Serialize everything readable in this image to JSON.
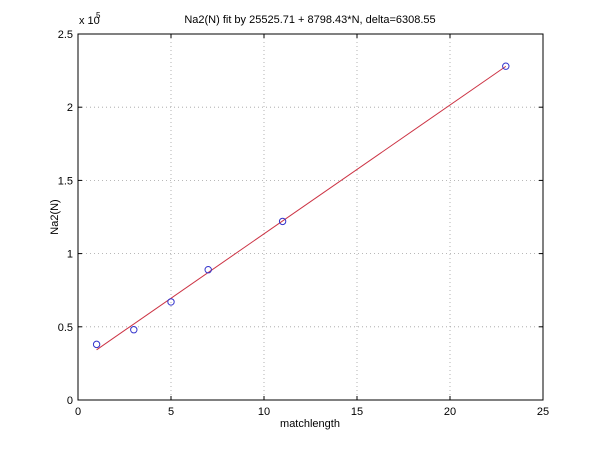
{
  "chart_data": {
    "type": "scatter",
    "title": "Na2(N) fit by 25525.71 + 8798.43*N, delta=6308.55",
    "xlabel": "matchlength",
    "ylabel": "Na2(N)",
    "xlim": [
      0,
      25
    ],
    "ylim": [
      0,
      2.5
    ],
    "y_multiplier_base": "x 10",
    "y_multiplier_exponent": "5",
    "xticks": [
      0,
      5,
      10,
      15,
      20,
      25
    ],
    "xtick_labels": [
      "0",
      "5",
      "10",
      "15",
      "20",
      "25"
    ],
    "yticks": [
      0,
      0.5,
      1,
      1.5,
      2,
      2.5
    ],
    "ytick_labels": [
      "0",
      "0.5",
      "1",
      "1.5",
      "2",
      "2.5"
    ],
    "grid": true,
    "points": {
      "x": [
        1,
        3,
        5,
        7,
        11,
        23
      ],
      "y": [
        0.38,
        0.48,
        0.67,
        0.89,
        1.22,
        2.28
      ],
      "marker": "circle",
      "color": "#3333cc"
    },
    "fit_line": {
      "x": [
        1,
        23
      ],
      "y": [
        0.343,
        2.279
      ],
      "color": "#cc3344"
    }
  }
}
